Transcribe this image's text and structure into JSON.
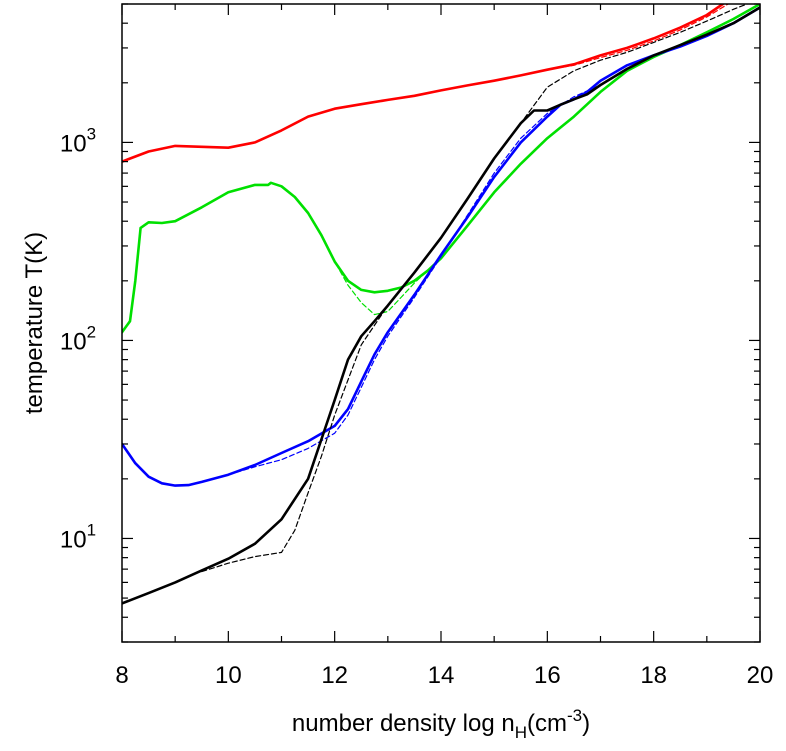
{
  "chart_data": {
    "type": "line",
    "title": "",
    "xlabel": "number density log n",
    "xlabel_subscript": "H",
    "xlabel_unit_open": "(cm",
    "xlabel_unit_exp": "-3",
    "xlabel_unit_close": ")",
    "ylabel": "temperature T(K)",
    "xlim": [
      8,
      20
    ],
    "ylim": [
      3,
      5000
    ],
    "yscale": "log",
    "grid": false,
    "x_ticks": [
      {
        "value": 8,
        "label": "8"
      },
      {
        "value": 10,
        "label": "10"
      },
      {
        "value": 12,
        "label": "12"
      },
      {
        "value": 14,
        "label": "14"
      },
      {
        "value": 16,
        "label": "16"
      },
      {
        "value": 18,
        "label": "18"
      },
      {
        "value": 20,
        "label": "20"
      }
    ],
    "y_ticks": [
      {
        "value": 10,
        "base": "10",
        "exp": "1"
      },
      {
        "value": 100,
        "base": "10",
        "exp": "2"
      },
      {
        "value": 1000,
        "base": "10",
        "exp": "3"
      }
    ],
    "series": [
      {
        "color": "#ff0000",
        "style": "solid",
        "x": [
          8.0,
          8.5,
          9.0,
          9.5,
          10.0,
          10.5,
          11.0,
          11.5,
          12.0,
          12.5,
          13.0,
          13.5,
          14.0,
          14.5,
          15.0,
          15.5,
          16.0,
          16.5,
          17.0,
          17.5,
          18.0,
          18.5,
          19.0,
          19.3
        ],
        "y": [
          800,
          900,
          960,
          950,
          940,
          1000,
          1150,
          1350,
          1480,
          1560,
          1640,
          1720,
          1830,
          1940,
          2050,
          2180,
          2330,
          2480,
          2750,
          3000,
          3350,
          3800,
          4400,
          5000
        ]
      },
      {
        "color": "#ff0000",
        "style": "dashed",
        "x": [
          16.0,
          16.5,
          17.0,
          17.5,
          18.0,
          18.5,
          19.0,
          19.4
        ],
        "y": [
          2330,
          2450,
          2680,
          2920,
          3250,
          3700,
          4300,
          5000
        ]
      },
      {
        "color": "#00e000",
        "style": "solid",
        "x": [
          8.0,
          8.15,
          8.25,
          8.35,
          8.5,
          8.75,
          9.0,
          9.5,
          10.0,
          10.5,
          10.75,
          10.8,
          11.0,
          11.25,
          11.5,
          11.75,
          12.0,
          12.25,
          12.5,
          12.75,
          13.0,
          13.25,
          13.5,
          13.75,
          14.0,
          14.5,
          15.0,
          15.5,
          16.0,
          16.5,
          17.0,
          17.5,
          18.0,
          18.5,
          19.0,
          19.5,
          20.0
        ],
        "y": [
          110,
          125,
          200,
          370,
          395,
          392,
          400,
          470,
          560,
          610,
          610,
          625,
          600,
          530,
          440,
          340,
          250,
          200,
          180,
          175,
          178,
          185,
          200,
          225,
          260,
          380,
          560,
          780,
          1050,
          1350,
          1800,
          2300,
          2700,
          3100,
          3600,
          4200,
          5000
        ]
      },
      {
        "color": "#00e000",
        "style": "dashed",
        "x": [
          11.75,
          12.0,
          12.25,
          12.5,
          12.75,
          13.0,
          13.25,
          13.5,
          13.75,
          14.0
        ],
        "y": [
          340,
          250,
          190,
          155,
          135,
          140,
          165,
          195,
          225,
          260
        ]
      },
      {
        "color": "#0000ff",
        "style": "solid",
        "x": [
          8.0,
          8.25,
          8.5,
          8.75,
          9.0,
          9.25,
          9.5,
          10.0,
          10.5,
          11.0,
          11.5,
          12.0,
          12.25,
          12.5,
          12.75,
          13.0,
          13.5,
          14.0,
          14.5,
          15.0,
          15.5,
          16.0,
          16.25,
          16.5,
          16.75,
          17.0,
          17.5,
          18.0,
          18.5,
          19.0,
          19.5,
          20.0
        ],
        "y": [
          30,
          24,
          20.5,
          19,
          18.5,
          18.6,
          19.3,
          21,
          23.5,
          27,
          31,
          37,
          45,
          62,
          85,
          110,
          170,
          270,
          420,
          670,
          1000,
          1350,
          1550,
          1650,
          1800,
          2050,
          2450,
          2750,
          3050,
          3450,
          4000,
          4800
        ]
      },
      {
        "color": "#0000ff",
        "style": "dashed",
        "x": [
          10.0,
          10.5,
          11.0,
          11.5,
          12.0,
          12.25,
          12.5,
          12.75,
          13.0,
          13.5,
          14.0,
          14.5,
          15.0,
          15.5,
          16.0,
          16.5,
          17.0
        ],
        "y": [
          21,
          23,
          25,
          28.5,
          34,
          42,
          58,
          80,
          105,
          165,
          265,
          430,
          700,
          1050,
          1400,
          1700,
          1950
        ]
      },
      {
        "color": "#000000",
        "style": "solid",
        "x": [
          8.0,
          8.5,
          9.0,
          9.5,
          10.0,
          10.5,
          11.0,
          11.5,
          12.0,
          12.25,
          12.5,
          12.75,
          13.0,
          13.5,
          14.0,
          14.5,
          15.0,
          15.5,
          15.75,
          16.0,
          16.25,
          16.5,
          16.75,
          17.0,
          17.5,
          18.0,
          18.5,
          19.0,
          19.5,
          20.0
        ],
        "y": [
          4.7,
          5.3,
          6.0,
          6.9,
          7.9,
          9.4,
          12.5,
          20,
          50,
          80,
          105,
          125,
          150,
          220,
          330,
          520,
          830,
          1250,
          1450,
          1450,
          1550,
          1650,
          1750,
          1950,
          2350,
          2750,
          3100,
          3500,
          4000,
          4800
        ]
      },
      {
        "color": "#000000",
        "style": "dashed",
        "x": [
          9.5,
          10.0,
          10.5,
          11.0,
          11.25,
          11.5,
          11.75,
          12.0,
          12.5,
          13.0,
          13.5,
          14.0,
          14.5,
          15.0,
          15.5,
          16.0,
          16.5,
          17.0,
          17.5,
          18.0,
          18.5,
          19.0,
          19.5,
          20.0
        ],
        "y": [
          6.8,
          7.5,
          8.1,
          8.5,
          11,
          17,
          26,
          42,
          95,
          150,
          220,
          330,
          520,
          830,
          1250,
          1900,
          2300,
          2600,
          2850,
          3200,
          3600,
          4100,
          4700,
          5300
        ]
      }
    ]
  }
}
